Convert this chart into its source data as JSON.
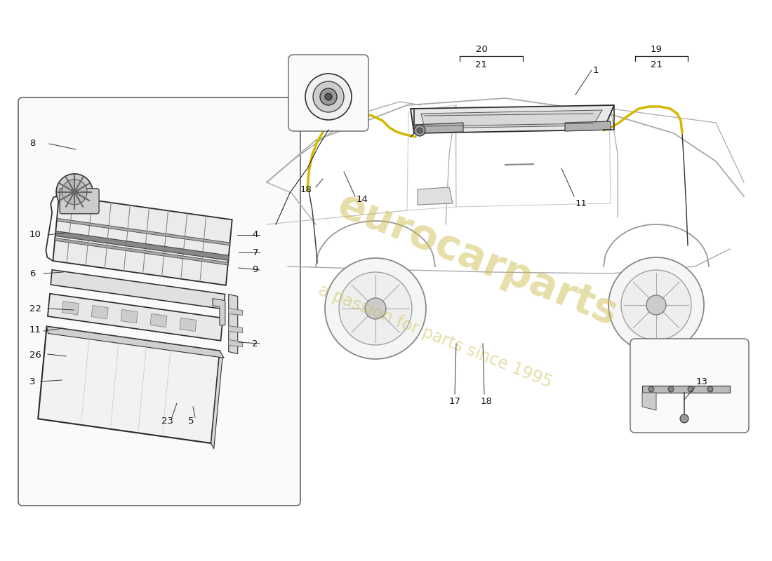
{
  "bg_color": "#ffffff",
  "line_color": "#222222",
  "thin_line": 0.7,
  "med_line": 1.1,
  "thick_line": 1.5,
  "label_fs": 9,
  "watermark_color1": "#c8b840",
  "watermark_color2": "#c8b840",
  "watermark_alpha": 0.45,
  "glass_fill": "#f0f0f0",
  "glass_edge": "#333333",
  "frame_fill": "#e0e0e0",
  "frame_edge": "#333333",
  "yellow_line": "#d4b800",
  "box_edge": "#666666",
  "box_fill": "#fafafa"
}
